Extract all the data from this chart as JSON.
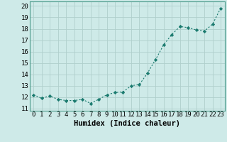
{
  "x": [
    0,
    1,
    2,
    3,
    4,
    5,
    6,
    7,
    8,
    9,
    10,
    11,
    12,
    13,
    14,
    15,
    16,
    17,
    18,
    19,
    20,
    21,
    22,
    23
  ],
  "y": [
    12.2,
    11.9,
    12.1,
    11.8,
    11.7,
    11.7,
    11.8,
    11.45,
    11.8,
    12.2,
    12.4,
    12.45,
    13.0,
    13.1,
    14.1,
    15.3,
    16.6,
    17.5,
    18.2,
    18.1,
    17.9,
    17.8,
    18.4,
    19.8
  ],
  "line_color": "#1a7a6e",
  "marker": "D",
  "marker_size": 2.2,
  "bg_color": "#ceeae8",
  "grid_color": "#b0cfcc",
  "xlabel": "Humidex (Indice chaleur)",
  "xlabel_fontsize": 7.5,
  "tick_fontsize": 6.5,
  "xlim": [
    -0.5,
    23.5
  ],
  "ylim": [
    10.8,
    20.4
  ],
  "yticks": [
    11,
    12,
    13,
    14,
    15,
    16,
    17,
    18,
    19,
    20
  ],
  "xticks": [
    0,
    1,
    2,
    3,
    4,
    5,
    6,
    7,
    8,
    9,
    10,
    11,
    12,
    13,
    14,
    15,
    16,
    17,
    18,
    19,
    20,
    21,
    22,
    23
  ]
}
